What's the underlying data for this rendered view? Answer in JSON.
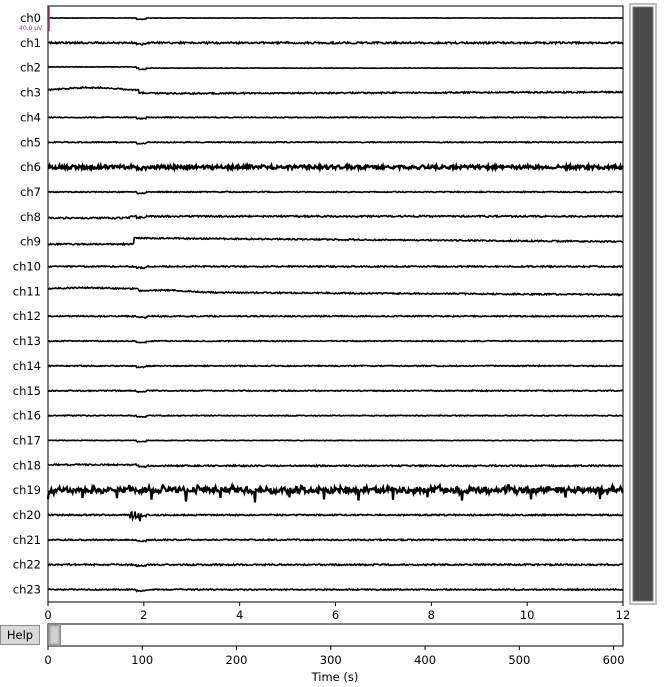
{
  "chart_data": {
    "type": "line",
    "channels": [
      "ch0",
      "ch1",
      "ch2",
      "ch3",
      "ch4",
      "ch5",
      "ch6",
      "ch7",
      "ch8",
      "ch9",
      "ch10",
      "ch11",
      "ch12",
      "ch13",
      "ch14",
      "ch15",
      "ch16",
      "ch17",
      "ch18",
      "ch19",
      "ch20",
      "ch21",
      "ch22",
      "ch23"
    ],
    "xlim": [
      0,
      12
    ],
    "x_ticks": [
      0,
      2,
      4,
      6,
      8,
      10,
      12
    ],
    "scale_bar_label": "40.0 µV",
    "overview": {
      "xlim": [
        0,
        610
      ],
      "x_ticks": [
        0,
        100,
        200,
        300,
        400,
        500,
        600
      ],
      "xlabel": "Time (s)",
      "window": [
        0,
        12
      ]
    },
    "colors": {
      "trace": "#000000",
      "scale_bar": "#c0306f",
      "scrollbar": "#4a4a4a"
    }
  },
  "help_label": "Help"
}
